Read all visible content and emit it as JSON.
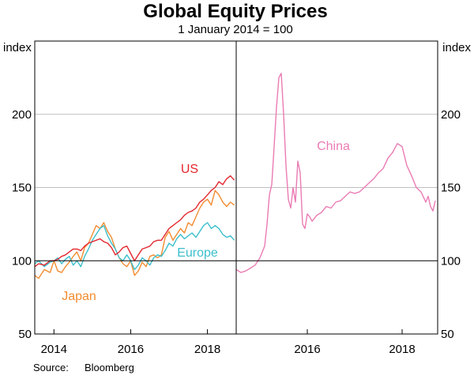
{
  "chart_data": {
    "type": "line",
    "title": "Global Equity Prices",
    "subtitle": "1 January 2014 = 100",
    "source_label": "Source:",
    "source_value": "Bloomberg",
    "unit_left": "index",
    "unit_right": "index",
    "ylim": [
      50,
      250
    ],
    "yticks": [
      "50",
      "100",
      "150",
      "200"
    ],
    "ytick_values": [
      50,
      100,
      150,
      200
    ],
    "baseline": 100,
    "colors": {
      "US": "#e3262e",
      "Japan": "#f28c30",
      "Europe": "#3bbfcc",
      "China": "#ea7cb4",
      "grid": "#c0c0c0"
    },
    "panels": [
      {
        "name": "left",
        "xlim": [
          2013.5,
          2018.75
        ],
        "xticks": [
          "2014",
          "2016",
          "2018"
        ],
        "xtick_values": [
          2014,
          2016,
          2018
        ],
        "series": [
          {
            "name": "Japan",
            "label": "Japan",
            "x": [
              2013.5,
              2013.6,
              2013.75,
              2013.9,
              2014.0,
              2014.1,
              2014.2,
              2014.3,
              2014.4,
              2014.5,
              2014.6,
              2014.7,
              2014.8,
              2014.9,
              2015.0,
              2015.1,
              2015.2,
              2015.3,
              2015.4,
              2015.5,
              2015.6,
              2015.7,
              2015.8,
              2015.9,
              2016.0,
              2016.1,
              2016.2,
              2016.3,
              2016.4,
              2016.5,
              2016.6,
              2016.7,
              2016.8,
              2016.9,
              2017.0,
              2017.1,
              2017.2,
              2017.3,
              2017.4,
              2017.5,
              2017.6,
              2017.7,
              2017.8,
              2017.9,
              2018.0,
              2018.1,
              2018.2,
              2018.3,
              2018.4,
              2018.5,
              2018.6,
              2018.7
            ],
            "values": [
              90,
              88,
              94,
              92,
              100,
              93,
              92,
              96,
              99,
              103,
              106,
              100,
              109,
              112,
              118,
              124,
              122,
              126,
              120,
              116,
              108,
              102,
              98,
              96,
              100,
              90,
              93,
              99,
              96,
              103,
              104,
              102,
              104,
              116,
              120,
              114,
              118,
              122,
              119,
              126,
              124,
              130,
              136,
              140,
              142,
              138,
              148,
              145,
              140,
              137,
              140,
              138
            ]
          },
          {
            "name": "Europe",
            "label": "Europe",
            "x": [
              2013.5,
              2013.6,
              2013.75,
              2013.9,
              2014.0,
              2014.1,
              2014.2,
              2014.3,
              2014.4,
              2014.5,
              2014.6,
              2014.7,
              2014.8,
              2014.9,
              2015.0,
              2015.1,
              2015.2,
              2015.3,
              2015.4,
              2015.5,
              2015.6,
              2015.7,
              2015.8,
              2015.9,
              2016.0,
              2016.1,
              2016.2,
              2016.3,
              2016.4,
              2016.5,
              2016.6,
              2016.7,
              2016.8,
              2016.9,
              2017.0,
              2017.1,
              2017.2,
              2017.3,
              2017.4,
              2017.5,
              2017.6,
              2017.7,
              2017.8,
              2017.9,
              2018.0,
              2018.1,
              2018.2,
              2018.3,
              2018.4,
              2018.5,
              2018.6,
              2018.7
            ],
            "values": [
              98,
              100,
              96,
              99,
              100,
              102,
              98,
              101,
              103,
              97,
              100,
              96,
              103,
              108,
              114,
              118,
              122,
              124,
              117,
              112,
              108,
              102,
              100,
              104,
              100,
              94,
              97,
              102,
              100,
              97,
              102,
              104,
              103,
              107,
              112,
              110,
              115,
              118,
              115,
              117,
              119,
              116,
              120,
              124,
              126,
              122,
              124,
              122,
              118,
              116,
              117,
              114
            ]
          },
          {
            "name": "US",
            "label": "US",
            "x": [
              2013.5,
              2013.6,
              2013.75,
              2013.9,
              2014.0,
              2014.1,
              2014.2,
              2014.3,
              2014.4,
              2014.5,
              2014.6,
              2014.7,
              2014.8,
              2014.9,
              2015.0,
              2015.1,
              2015.2,
              2015.3,
              2015.4,
              2015.5,
              2015.6,
              2015.7,
              2015.8,
              2015.9,
              2016.0,
              2016.1,
              2016.2,
              2016.3,
              2016.4,
              2016.5,
              2016.6,
              2016.7,
              2016.8,
              2016.9,
              2017.0,
              2017.1,
              2017.2,
              2017.3,
              2017.4,
              2017.5,
              2017.6,
              2017.7,
              2017.8,
              2017.9,
              2018.0,
              2018.1,
              2018.2,
              2018.3,
              2018.4,
              2018.5,
              2018.6,
              2018.7
            ],
            "values": [
              96,
              98,
              97,
              100,
              100,
              101,
              103,
              104,
              106,
              108,
              108,
              107,
              110,
              112,
              113,
              114,
              115,
              113,
              112,
              109,
              104,
              106,
              109,
              110,
              105,
              100,
              104,
              108,
              109,
              110,
              113,
              114,
              114,
              118,
              122,
              124,
              126,
              128,
              131,
              133,
              134,
              136,
              140,
              142,
              145,
              148,
              150,
              154,
              152,
              156,
              158,
              155
            ]
          }
        ]
      },
      {
        "name": "right",
        "xlim": [
          2014.5,
          2018.75
        ],
        "xticks": [
          "2016",
          "2018"
        ],
        "xtick_values": [
          2016,
          2018
        ],
        "series": [
          {
            "name": "China",
            "label": "China",
            "x": [
              2014.5,
              2014.6,
              2014.7,
              2014.8,
              2014.9,
              2015.0,
              2015.1,
              2015.15,
              2015.2,
              2015.25,
              2015.3,
              2015.35,
              2015.4,
              2015.45,
              2015.5,
              2015.55,
              2015.6,
              2015.65,
              2015.7,
              2015.75,
              2015.8,
              2015.85,
              2015.9,
              2015.95,
              2016.0,
              2016.05,
              2016.1,
              2016.2,
              2016.3,
              2016.4,
              2016.5,
              2016.6,
              2016.7,
              2016.8,
              2016.9,
              2017.0,
              2017.1,
              2017.2,
              2017.3,
              2017.4,
              2017.5,
              2017.6,
              2017.7,
              2017.8,
              2017.9,
              2018.0,
              2018.1,
              2018.2,
              2018.3,
              2018.4,
              2018.5,
              2018.55,
              2018.6,
              2018.65,
              2018.7
            ],
            "values": [
              94,
              92,
              93,
              95,
              97,
              102,
              110,
              125,
              145,
              152,
              178,
              205,
              225,
              228,
              200,
              165,
              142,
              136,
              150,
              140,
              168,
              160,
              125,
              122,
              132,
              130,
              127,
              131,
              133,
              137,
              136,
              140,
              141,
              144,
              147,
              146,
              147,
              150,
              153,
              156,
              160,
              163,
              170,
              174,
              180,
              178,
              165,
              158,
              150,
              147,
              140,
              144,
              137,
              134,
              141
            ]
          }
        ]
      }
    ]
  }
}
